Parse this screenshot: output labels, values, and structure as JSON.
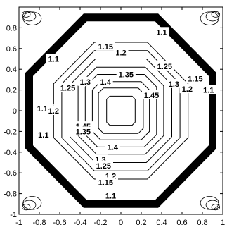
{
  "chart_data": {
    "type": "contour",
    "title": "",
    "xlabel": "",
    "ylabel": "",
    "xlim": [
      -1,
      1
    ],
    "ylim": [
      -1,
      1
    ],
    "grid": false,
    "legend": "none",
    "x_ticks": [
      {
        "value": -1,
        "label": "-1"
      },
      {
        "value": -0.8,
        "label": "-0.8"
      },
      {
        "value": -0.6,
        "label": "-0.6"
      },
      {
        "value": -0.4,
        "label": "-0.4"
      },
      {
        "value": -0.2,
        "label": "-0.2"
      },
      {
        "value": 0,
        "label": "0"
      },
      {
        "value": 0.2,
        "label": "0.2"
      },
      {
        "value": 0.4,
        "label": "0.4"
      },
      {
        "value": 0.6,
        "label": "0.6"
      },
      {
        "value": 0.8,
        "label": "0.8"
      },
      {
        "value": 1,
        "label": "1"
      }
    ],
    "y_ticks": [
      {
        "value": 0.8,
        "label": "0.8"
      },
      {
        "value": 0.6,
        "label": "0.6"
      },
      {
        "value": 0.4,
        "label": "0.4"
      },
      {
        "value": 0.2,
        "label": "0.2"
      },
      {
        "value": 0,
        "label": "0"
      },
      {
        "value": -0.2,
        "label": "-0.2"
      },
      {
        "value": -0.4,
        "label": "-0.4"
      },
      {
        "value": -0.6,
        "label": "-0.6"
      },
      {
        "value": -0.8,
        "label": "-0.8"
      },
      {
        "value": -1,
        "label": "-1"
      }
    ],
    "boundary": {
      "shape": "octagon",
      "half_width": 0.9,
      "corner_cut": 0.55
    },
    "contour_levels": [
      {
        "level": 1.1,
        "label": "1.1",
        "half_width": 0.66,
        "corner_cut": 0.4
      },
      {
        "level": 1.15,
        "label": "1.15",
        "half_width": 0.58,
        "corner_cut": 0.32
      },
      {
        "level": 1.2,
        "label": "1.2",
        "half_width": 0.5,
        "corner_cut": 0.25
      },
      {
        "level": 1.25,
        "label": "1.25",
        "half_width": 0.42,
        "corner_cut": 0.18
      },
      {
        "level": 1.3,
        "label": "1.3",
        "half_width": 0.35,
        "corner_cut": 0.12
      },
      {
        "level": 1.35,
        "label": "1.35",
        "half_width": 0.28,
        "corner_cut": 0.08
      },
      {
        "level": 1.4,
        "label": "1.4",
        "half_width": 0.22,
        "corner_cut": 0.05
      },
      {
        "level": 1.45,
        "label": "1.45",
        "half_width": 0.14,
        "corner_cut": 0.03
      }
    ],
    "contour_labels": [
      {
        "text": "1.1",
        "x": 0.4,
        "y": 0.76
      },
      {
        "text": "1.15",
        "x": -0.15,
        "y": 0.62
      },
      {
        "text": "1.2",
        "x": 0.0,
        "y": 0.56
      },
      {
        "text": "1.1",
        "x": -0.66,
        "y": 0.5
      },
      {
        "text": "1.25",
        "x": 0.43,
        "y": 0.43
      },
      {
        "text": "1.35",
        "x": 0.05,
        "y": 0.35
      },
      {
        "text": "1.4",
        "x": -0.15,
        "y": 0.28
      },
      {
        "text": "1.25",
        "x": -0.52,
        "y": 0.22
      },
      {
        "text": "1.3",
        "x": -0.35,
        "y": 0.28
      },
      {
        "text": "1.3",
        "x": 0.52,
        "y": 0.26
      },
      {
        "text": "1.15",
        "x": 0.73,
        "y": 0.31
      },
      {
        "text": "1.2",
        "x": 0.65,
        "y": 0.21
      },
      {
        "text": "1.1",
        "x": 0.86,
        "y": 0.2
      },
      {
        "text": "1.45",
        "x": 0.3,
        "y": 0.15
      },
      {
        "text": "1.15",
        "x": -0.75,
        "y": 0.02
      },
      {
        "text": "1.2",
        "x": -0.66,
        "y": 0.0
      },
      {
        "text": "1.1",
        "x": -0.76,
        "y": -0.23
      },
      {
        "text": "1.45",
        "x": -0.37,
        "y": -0.15
      },
      {
        "text": "1.35",
        "x": -0.37,
        "y": -0.2
      },
      {
        "text": "1.4",
        "x": -0.08,
        "y": -0.35
      },
      {
        "text": "1.3",
        "x": -0.2,
        "y": -0.47
      },
      {
        "text": "1.25",
        "x": -0.17,
        "y": -0.53
      },
      {
        "text": "1.2",
        "x": -0.1,
        "y": -0.63
      },
      {
        "text": "1.15",
        "x": -0.15,
        "y": -0.69
      },
      {
        "text": "1.1",
        "x": -0.1,
        "y": -0.82
      }
    ]
  }
}
